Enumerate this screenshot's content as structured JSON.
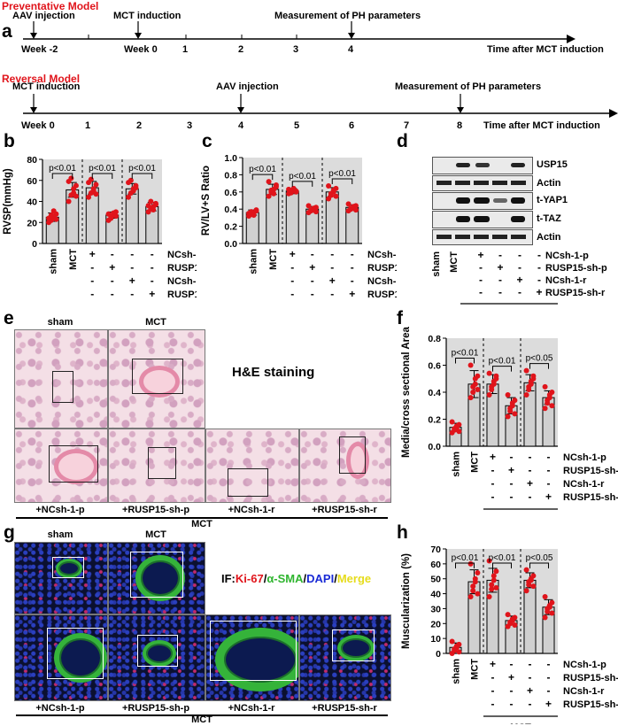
{
  "preventative": {
    "title": "Preventative Model",
    "letter": "a",
    "aav_label": "AAV injection",
    "mct_label": "MCT induction",
    "measure_label": "Measurement of PH parameters",
    "ticks": [
      "Week -2",
      "Week 0",
      "1",
      "2",
      "3",
      "4"
    ],
    "axis_label": "Time after MCT induction"
  },
  "reversal": {
    "title": "Reversal Model",
    "mct_label": "MCT induction",
    "aav_label": "AAV injection",
    "measure_label": "Measurement of PH parameters",
    "ticks": [
      "Week 0",
      "1",
      "2",
      "3",
      "4",
      "5",
      "6",
      "7",
      "8"
    ],
    "axis_label": "Time after MCT induction"
  },
  "panel_letters": {
    "b": "b",
    "c": "c",
    "d": "d",
    "e": "e",
    "f": "f",
    "g": "g",
    "h": "h"
  },
  "treatment_rows": [
    "NCsh-1-p",
    "RUSP15-sh-p",
    "NCsh-1-r",
    "RUSP15-sh-r"
  ],
  "treatment_signs": [
    [
      "+",
      "-",
      "-",
      "-"
    ],
    [
      "-",
      "+",
      "-",
      "-"
    ],
    [
      "-",
      "-",
      "+",
      "-"
    ],
    [
      "-",
      "-",
      "-",
      "+"
    ]
  ],
  "group_labels": [
    "sham",
    "MCT"
  ],
  "mct_group_label": "MCT",
  "western": {
    "bands": [
      "USP15",
      "Actin",
      "t-YAP1",
      "t-TAZ",
      "Actin"
    ],
    "lanes": [
      "sham",
      "MCT"
    ]
  },
  "he": {
    "title": "H&E staining",
    "top_labels": [
      "sham",
      "MCT"
    ],
    "bottom_labels": [
      "+NCsh-1-p",
      "+RUSP15-sh-p",
      "+NCsh-1-r",
      "+RUSP15-sh-r"
    ],
    "group": "MCT"
  },
  "if": {
    "title_prefix": "IF:",
    "ki67": "Ki-67",
    "sep": "/",
    "sma": "α-SMA",
    "dapi": "DAPI",
    "merge": "Merge",
    "top_labels": [
      "sham",
      "MCT"
    ],
    "bottom_labels": [
      "+NCsh-1-p",
      "+RUSP15-sh-p",
      "+NCsh-1-r",
      "+RUSP15-sh-r"
    ],
    "group": "MCT"
  },
  "colors": {
    "red": "#e0141b",
    "ki67": "#e0141b",
    "sma": "#2fb52f",
    "dapi": "#1a2bd6",
    "merge": "#e6dc1c",
    "bar_bg": "#dcdcdc"
  },
  "chart_data": [
    {
      "id": "b",
      "type": "bar",
      "ylabel": "RVSP(mmHg)",
      "ylim": [
        0,
        80
      ],
      "yticks": [
        0,
        20,
        40,
        60,
        80
      ],
      "values": [
        25,
        51,
        53,
        27,
        52,
        35
      ],
      "errors": [
        4,
        7,
        6,
        3,
        5,
        4
      ],
      "points": [
        [
          20,
          22,
          25,
          28,
          24,
          27,
          31,
          23
        ],
        [
          40,
          46,
          52,
          55,
          59,
          62,
          48,
          45
        ],
        [
          44,
          48,
          52,
          56,
          58,
          61,
          50,
          47
        ],
        [
          22,
          25,
          27,
          30,
          28,
          24,
          29,
          26
        ],
        [
          44,
          48,
          52,
          55,
          58,
          60,
          50,
          53
        ],
        [
          30,
          33,
          35,
          38,
          36,
          40,
          32,
          37
        ]
      ],
      "pvalues": [
        "p<0.01",
        "p<0.01",
        "p<0.01"
      ]
    },
    {
      "id": "c",
      "type": "bar",
      "ylabel": "RV/LV+S Ratio",
      "ylim": [
        0,
        1.0
      ],
      "yticks": [
        0.0,
        0.2,
        0.4,
        0.6,
        0.8,
        1.0
      ],
      "values": [
        0.36,
        0.63,
        0.61,
        0.4,
        0.6,
        0.42
      ],
      "errors": [
        0.03,
        0.06,
        0.03,
        0.03,
        0.05,
        0.03
      ],
      "points": [
        [
          0.32,
          0.34,
          0.36,
          0.38,
          0.35,
          0.37,
          0.33,
          0.39
        ],
        [
          0.55,
          0.6,
          0.63,
          0.68,
          0.72,
          0.62,
          0.58,
          0.66
        ],
        [
          0.58,
          0.6,
          0.62,
          0.61,
          0.63,
          0.59,
          0.64,
          0.6
        ],
        [
          0.36,
          0.38,
          0.4,
          0.42,
          0.44,
          0.39,
          0.41,
          0.37
        ],
        [
          0.52,
          0.56,
          0.6,
          0.64,
          0.67,
          0.58,
          0.62,
          0.55
        ],
        [
          0.38,
          0.4,
          0.42,
          0.44,
          0.46,
          0.41,
          0.43,
          0.39
        ]
      ],
      "pvalues": [
        "p<0.01",
        "p<0.01",
        "p<0.01"
      ]
    },
    {
      "id": "f",
      "type": "bar",
      "ylabel": "Media/cross sectional Area",
      "ylim": [
        0,
        0.8
      ],
      "yticks": [
        0.0,
        0.2,
        0.4,
        0.6,
        0.8
      ],
      "values": [
        0.14,
        0.46,
        0.46,
        0.3,
        0.47,
        0.36
      ],
      "errors": [
        0.03,
        0.1,
        0.07,
        0.06,
        0.06,
        0.05
      ],
      "points": [
        [
          0.1,
          0.12,
          0.14,
          0.16,
          0.18,
          0.13,
          0.15,
          0.11
        ],
        [
          0.36,
          0.4,
          0.46,
          0.52,
          0.6,
          0.44,
          0.5,
          0.42
        ],
        [
          0.38,
          0.42,
          0.46,
          0.5,
          0.54,
          0.44,
          0.48,
          0.52
        ],
        [
          0.22,
          0.26,
          0.3,
          0.34,
          0.38,
          0.28,
          0.32,
          0.24
        ],
        [
          0.38,
          0.42,
          0.46,
          0.5,
          0.56,
          0.44,
          0.48,
          0.52
        ],
        [
          0.28,
          0.32,
          0.36,
          0.4,
          0.44,
          0.34,
          0.38,
          0.3
        ]
      ],
      "pvalues": [
        "p<0.01",
        "p<0.01",
        "p<0.05"
      ]
    },
    {
      "id": "h",
      "type": "bar",
      "ylabel": "Muscularization (%)",
      "ylim": [
        0,
        70
      ],
      "yticks": [
        0,
        10,
        20,
        30,
        40,
        50,
        60,
        70
      ],
      "values": [
        4,
        48,
        49,
        22,
        49,
        31
      ],
      "errors": [
        3,
        8,
        8,
        3,
        5,
        5
      ],
      "points": [
        [
          0,
          2,
          4,
          6,
          8,
          3,
          5,
          1
        ],
        [
          38,
          42,
          48,
          54,
          60,
          45,
          50,
          40
        ],
        [
          38,
          43,
          49,
          55,
          62,
          46,
          52,
          44
        ],
        [
          18,
          20,
          22,
          24,
          26,
          21,
          23,
          19
        ],
        [
          42,
          46,
          49,
          52,
          56,
          48,
          50,
          45
        ],
        [
          24,
          28,
          31,
          34,
          38,
          30,
          32,
          27
        ]
      ],
      "pvalues": [
        "p<0.01",
        "p<0.01",
        "p<0.05"
      ]
    }
  ]
}
